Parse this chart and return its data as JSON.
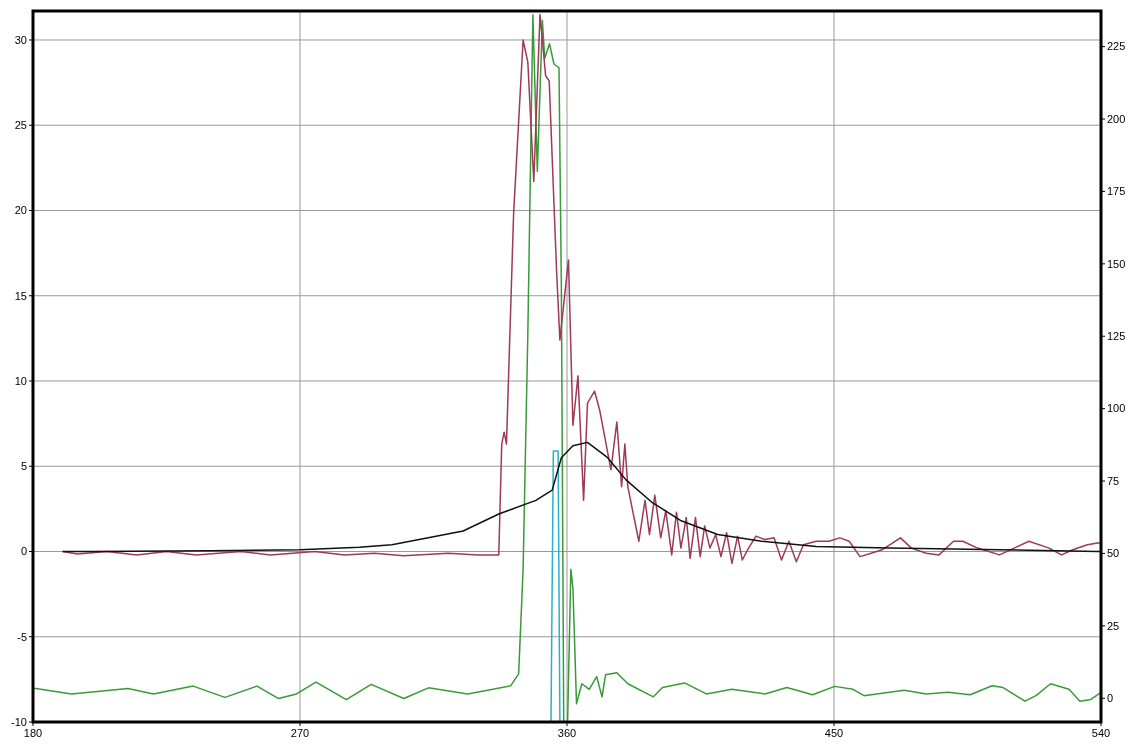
{
  "chart_data": {
    "type": "line",
    "xlim": [
      180,
      540
    ],
    "xticks": [
      180,
      270,
      360,
      450,
      540
    ],
    "ylim": [
      -10,
      31.7
    ],
    "yticks": [
      -10,
      -5,
      0,
      5,
      10,
      15,
      20,
      25,
      30
    ],
    "y2lim": [
      -8.2,
      237.3
    ],
    "y2ticks": [
      0,
      25,
      50,
      75,
      100,
      125,
      150,
      175,
      200,
      225
    ],
    "grid": true,
    "marker": "none",
    "line_style": "solid",
    "series": [
      {
        "color": "#3a9a3a",
        "axis": "y2",
        "x": [
          180,
          181,
          193,
          212,
          220.6,
          234,
          244.7,
          255.5,
          262.8,
          268.8,
          275.4,
          285.6,
          294,
          305,
          313.3,
          326.5,
          341,
          343.7,
          345.2,
          346.8,
          348.5,
          350,
          351.7,
          352.5,
          354.1,
          355.6,
          357.3,
          358.1,
          358.9,
          360.2,
          361.3,
          362,
          363.2,
          365,
          367.5,
          370,
          371.8,
          373,
          376.8,
          380.5,
          389.1,
          392.2,
          399.6,
          407,
          415.6,
          426.7,
          434.1,
          442.8,
          450.2,
          456.4,
          460.1,
          468.7,
          473.7,
          481.1,
          488.4,
          495.9,
          503.3,
          507,
          514.4,
          518.1,
          523,
          529.2,
          532.9,
          536.6,
          538.8,
          540
        ],
        "values": [
          3.4,
          3.4,
          1.5,
          3.4,
          1.5,
          4.2,
          0.3,
          4.2,
          -0.1,
          1.5,
          5.6,
          -0.5,
          4.8,
          -0.1,
          3.6,
          1.5,
          4.3,
          8.4,
          44.5,
          126,
          236,
          182,
          234,
          221,
          226,
          219,
          217.7,
          142,
          -8.2,
          -8.2,
          44.5,
          38,
          -1.9,
          5,
          3.1,
          7.5,
          0.5,
          8.1,
          8.8,
          5,
          0.5,
          3.7,
          5.3,
          1.5,
          3.1,
          1.5,
          3.7,
          1.2,
          4.1,
          3.1,
          0.9,
          2.1,
          2.8,
          1.5,
          2.1,
          1.2,
          4.3,
          3.7,
          -1,
          0.9,
          5,
          3.1,
          -1,
          -0.4,
          1.2,
          2
        ]
      },
      {
        "color": "#2ab0c8",
        "x": [
          354.6,
          355.4,
          357,
          357.6
        ],
        "values": [
          -10,
          5.9,
          5.9,
          -10
        ]
      },
      {
        "color": "#9e3a55",
        "x": [
          190,
          195,
          205,
          215,
          225,
          235,
          250,
          260,
          275,
          285,
          295,
          305,
          320,
          330,
          337,
          338,
          338.8,
          339.6,
          342,
          345.2,
          346.8,
          348.8,
          350.9,
          352.8,
          354,
          356.5,
          357.6,
          360.5,
          362,
          363.7,
          365.6,
          366.9,
          369.3,
          371,
          374.8,
          376.8,
          378.4,
          379.5,
          380.5,
          384.2,
          386.3,
          387.8,
          389.6,
          391.6,
          393.3,
          395.3,
          396.9,
          398.4,
          400.2,
          401.5,
          403.3,
          404.9,
          406.4,
          408.2,
          410.1,
          411.9,
          413.8,
          415.6,
          417.5,
          419.1,
          421.2,
          423.7,
          426.7,
          429.8,
          432.3,
          434.8,
          437.3,
          439.7,
          444,
          448.3,
          452,
          455.1,
          458.8,
          462.5,
          466.2,
          472.4,
          476.1,
          481.1,
          485.4,
          490.3,
          493.4,
          498.4,
          505.8,
          510.7,
          515.7,
          522.5,
          526.7,
          530.5,
          535.4,
          538.8,
          540
        ],
        "values": [
          0,
          -0.15,
          0,
          -0.2,
          0,
          -0.2,
          0,
          -0.2,
          0,
          -0.2,
          -0.1,
          -0.25,
          -0.1,
          -0.2,
          -0.2,
          6.3,
          7,
          6.3,
          19.8,
          30,
          28.7,
          21.7,
          31.5,
          27.9,
          27.6,
          16.4,
          12.4,
          17.1,
          7.4,
          10.3,
          3,
          8.7,
          9.4,
          8.3,
          4.8,
          7.6,
          3.8,
          6.3,
          3.8,
          0.6,
          3,
          1,
          3.3,
          0.8,
          2.4,
          -0.2,
          2.3,
          0.2,
          2,
          -0.4,
          2,
          -0.3,
          1.5,
          0.2,
          1,
          -0.3,
          1.1,
          -0.7,
          0.9,
          -0.5,
          0.2,
          0.9,
          0.7,
          0.8,
          -0.5,
          0.6,
          -0.6,
          0.4,
          0.6,
          0.6,
          0.8,
          0.6,
          -0.3,
          -0.1,
          0.1,
          0.8,
          0.2,
          -0.1,
          -0.2,
          0.6,
          0.6,
          0.2,
          -0.2,
          0.2,
          0.6,
          0.2,
          -0.2,
          0.1,
          0.4,
          0.5,
          0.5
        ]
      },
      {
        "color": "#111111",
        "x": [
          190,
          200,
          240,
          270,
          290,
          301,
          325,
          337,
          349.5,
          355,
          358.1,
          362,
          366.9,
          373.7,
          379.9,
          388.5,
          398.5,
          410.8,
          425.6,
          444,
          468.7,
          505.8,
          538.8,
          540
        ],
        "values": [
          0,
          0,
          0.05,
          0.1,
          0.25,
          0.4,
          1.2,
          2.2,
          3,
          3.6,
          5.5,
          6.2,
          6.4,
          5.5,
          4.2,
          2.9,
          1.8,
          1,
          0.6,
          0.3,
          0.2,
          0.1,
          0,
          0
        ]
      }
    ]
  }
}
